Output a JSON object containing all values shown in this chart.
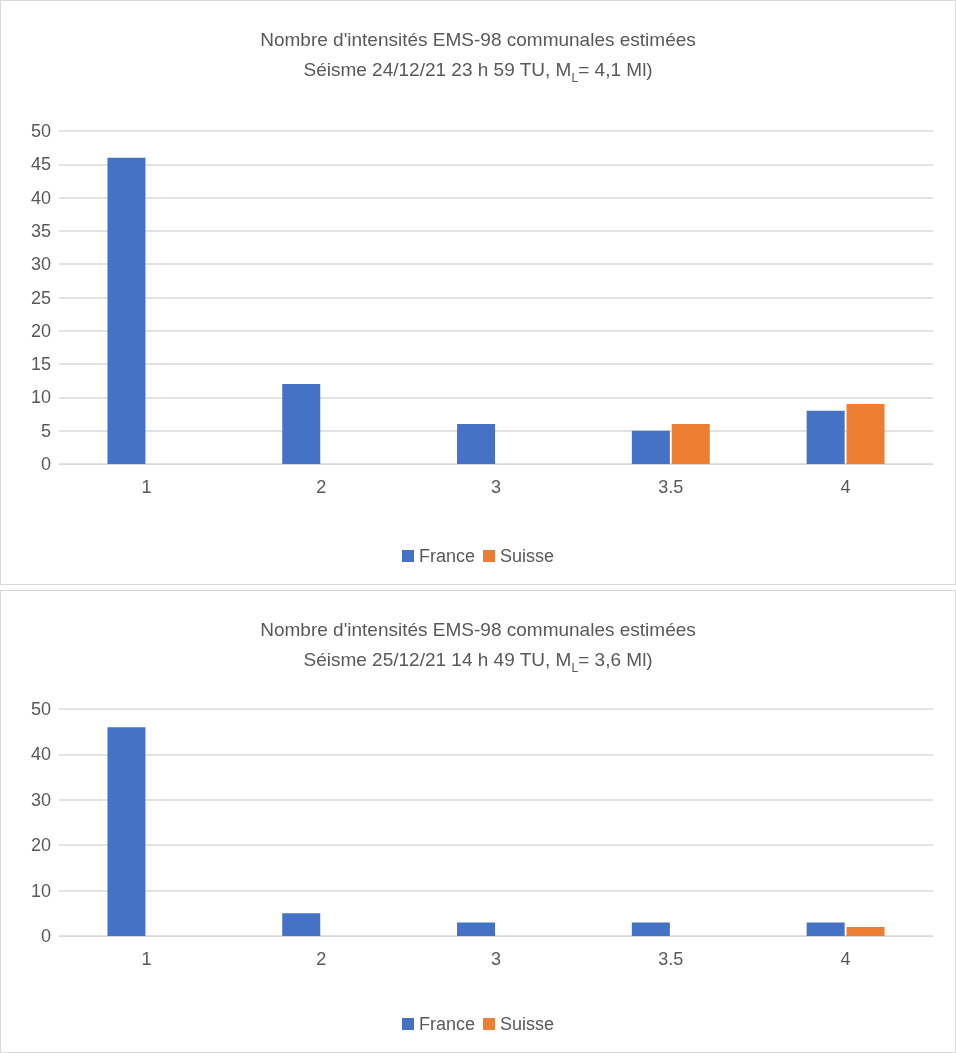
{
  "chart_data": [
    {
      "type": "bar",
      "title": "Nombre d'intensités EMS-98 communales estimées",
      "subtitle": "Séisme 24/12/21 23 h 59 TU, M$_{L}$= 4,1 Ml)",
      "categories": [
        "1",
        "2",
        "3",
        "3.5",
        "4"
      ],
      "series": [
        {
          "name": "France",
          "color": "#4472c4",
          "values": [
            46,
            12,
            6,
            5,
            8
          ]
        },
        {
          "name": "Suisse",
          "color": "#ed7d31",
          "values": [
            null,
            null,
            null,
            6,
            9
          ]
        }
      ],
      "ylim": [
        0,
        50
      ],
      "yticks": [
        0,
        5,
        10,
        15,
        20,
        25,
        30,
        35,
        40,
        45,
        50
      ],
      "grid": "y",
      "legend": "bottom"
    },
    {
      "type": "bar",
      "title": "Nombre d'intensités EMS-98 communales estimées",
      "subtitle": "Séisme 25/12/21 14 h 49 TU, M$_{L}$= 3,6 Ml)",
      "categories": [
        "1",
        "2",
        "3",
        "3.5",
        "4"
      ],
      "series": [
        {
          "name": "France",
          "color": "#4472c4",
          "values": [
            46,
            5,
            3,
            3,
            3
          ]
        },
        {
          "name": "Suisse",
          "color": "#ed7d31",
          "values": [
            null,
            null,
            null,
            null,
            2
          ]
        }
      ],
      "ylim": [
        0,
        50
      ],
      "yticks": [
        0,
        10,
        20,
        30,
        40,
        50
      ],
      "grid": "y",
      "legend": "bottom"
    }
  ]
}
